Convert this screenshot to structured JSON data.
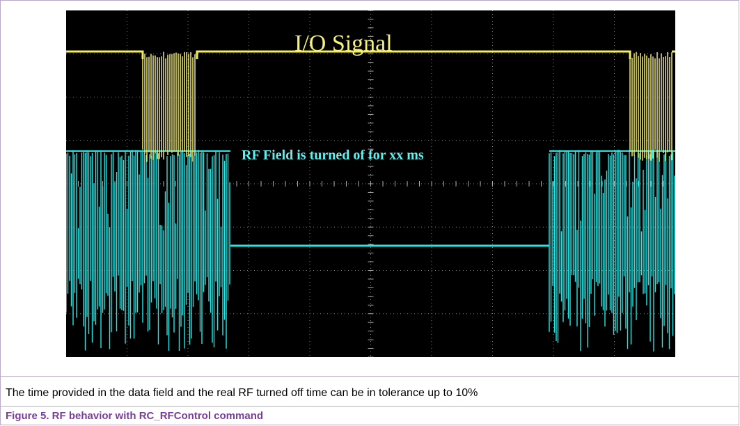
{
  "figure": {
    "scope_labels": {
      "io_signal": "I/O Signal",
      "rf_field": "RF Field is turned of for xx ms"
    },
    "note": "The time provided in the data field and the real RF turned off time can be in tolerance up to 10%",
    "caption": "Figure 5.  RF behavior with RC_RFControl command"
  }
}
